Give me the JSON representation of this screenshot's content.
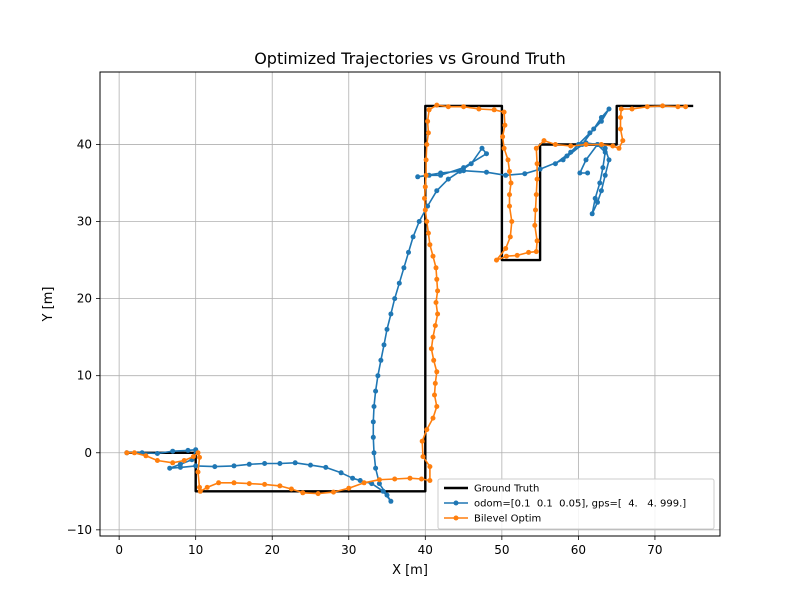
{
  "chart_data": {
    "type": "line",
    "title": "Optimized Trajectories vs Ground Truth",
    "xlabel": "X [m]",
    "ylabel": "Y [m]",
    "xlim": [
      -2.5,
      78.5
    ],
    "ylim": [
      -10.8,
      49.4
    ],
    "xticks": [
      0,
      10,
      20,
      30,
      40,
      50,
      60,
      70
    ],
    "yticks": [
      -10,
      0,
      10,
      20,
      30,
      40
    ],
    "xtick_labels": [
      "0",
      "10",
      "20",
      "30",
      "40",
      "50",
      "60",
      "70"
    ],
    "ytick_labels": [
      "−10",
      "0",
      "10",
      "20",
      "30",
      "40"
    ],
    "grid": true,
    "legend_position": "lower-right",
    "series": [
      {
        "name": "Ground Truth",
        "color": "#000000",
        "markers": false,
        "points": [
          [
            1,
            0
          ],
          [
            10,
            0
          ],
          [
            10,
            -5
          ],
          [
            40,
            -5
          ],
          [
            40,
            45
          ],
          [
            50,
            45
          ],
          [
            50,
            25
          ],
          [
            55,
            25
          ],
          [
            55,
            40
          ],
          [
            65,
            40
          ],
          [
            65,
            45
          ],
          [
            75,
            45
          ]
        ]
      },
      {
        "name": "odom=[0.1  0.1  0.05], gps=[  4.   4. 999.]",
        "color": "#1f77b4",
        "markers": true,
        "points": [
          [
            1,
            0
          ],
          [
            3,
            0
          ],
          [
            5,
            -0.1
          ],
          [
            7,
            0.2
          ],
          [
            9,
            0.3
          ],
          [
            10,
            0.4
          ],
          [
            9.5,
            -0.9
          ],
          [
            8,
            -1.5
          ],
          [
            6.6,
            -2.0
          ],
          [
            8,
            -1.9
          ],
          [
            10,
            -1.7
          ],
          [
            12.5,
            -1.8
          ],
          [
            15,
            -1.7
          ],
          [
            17,
            -1.5
          ],
          [
            19,
            -1.4
          ],
          [
            21,
            -1.4
          ],
          [
            23,
            -1.3
          ],
          [
            25,
            -1.6
          ],
          [
            27,
            -1.9
          ],
          [
            29,
            -2.6
          ],
          [
            30.5,
            -3.3
          ],
          [
            31.5,
            -3.6
          ],
          [
            33,
            -4.0
          ],
          [
            34.5,
            -5.0
          ],
          [
            35.5,
            -6.3
          ],
          [
            35,
            -5.5
          ],
          [
            34,
            -4.0
          ],
          [
            33.5,
            -2.0
          ],
          [
            33.3,
            0
          ],
          [
            33.2,
            2
          ],
          [
            33.2,
            4
          ],
          [
            33.3,
            6
          ],
          [
            33.5,
            8
          ],
          [
            33.8,
            10
          ],
          [
            34.2,
            12
          ],
          [
            34.6,
            14
          ],
          [
            35,
            16
          ],
          [
            35.5,
            18
          ],
          [
            36,
            20
          ],
          [
            36.6,
            22
          ],
          [
            37.2,
            24
          ],
          [
            37.8,
            26
          ],
          [
            38.4,
            28
          ],
          [
            39.2,
            30
          ],
          [
            40.3,
            32
          ],
          [
            41.5,
            34
          ],
          [
            43,
            35.5
          ],
          [
            44.5,
            36.5
          ],
          [
            46,
            37.5
          ],
          [
            47.4,
            39.5
          ],
          [
            48,
            38.8
          ],
          [
            45,
            37
          ],
          [
            42,
            36
          ],
          [
            40.5,
            36
          ],
          [
            39,
            35.8
          ],
          [
            42,
            36.3
          ],
          [
            45,
            36.6
          ],
          [
            48,
            36.4
          ],
          [
            50.5,
            36.0
          ],
          [
            53,
            36.2
          ],
          [
            55,
            36.8
          ],
          [
            58,
            38
          ],
          [
            60.5,
            40
          ],
          [
            62,
            42
          ],
          [
            63,
            43.5
          ],
          [
            64,
            44.6
          ],
          [
            63,
            43
          ],
          [
            61.5,
            41.5
          ],
          [
            60,
            40
          ],
          [
            58.5,
            38.5
          ],
          [
            57,
            37.5
          ],
          [
            59,
            39
          ],
          [
            61,
            40.2
          ],
          [
            62.5,
            40
          ],
          [
            63.5,
            39.5
          ],
          [
            64,
            38
          ],
          [
            63.5,
            36
          ],
          [
            63,
            34
          ],
          [
            62.5,
            32.5
          ],
          [
            61.8,
            31
          ],
          [
            62.2,
            33
          ],
          [
            62.8,
            35
          ],
          [
            63.2,
            37
          ],
          [
            63.5,
            39
          ],
          [
            62.5,
            40
          ],
          [
            61,
            38
          ],
          [
            60.2,
            36.3
          ],
          [
            61.2,
            36.3
          ]
        ]
      },
      {
        "name": "Bilevel Optim",
        "color": "#ff7f0e",
        "markers": true,
        "points": [
          [
            1,
            0
          ],
          [
            2,
            0
          ],
          [
            3.5,
            -0.4
          ],
          [
            5,
            -1.0
          ],
          [
            7,
            -1.3
          ],
          [
            8.5,
            -1.0
          ],
          [
            9.7,
            -0.5
          ],
          [
            10.3,
            0
          ],
          [
            10.5,
            -0.6
          ],
          [
            10.3,
            -2.5
          ],
          [
            10.5,
            -4.5
          ],
          [
            10.6,
            -5.0
          ],
          [
            11.5,
            -4.5
          ],
          [
            13,
            -3.9
          ],
          [
            15,
            -3.9
          ],
          [
            17,
            -4.0
          ],
          [
            19,
            -4.1
          ],
          [
            21,
            -4.3
          ],
          [
            22.5,
            -4.7
          ],
          [
            24,
            -5.2
          ],
          [
            26,
            -5.3
          ],
          [
            28,
            -5.1
          ],
          [
            30,
            -4.6
          ],
          [
            32,
            -3.9
          ],
          [
            34,
            -3.5
          ],
          [
            36,
            -3.4
          ],
          [
            38,
            -3.3
          ],
          [
            39.5,
            -3.4
          ],
          [
            40.6,
            -3.6
          ],
          [
            40.6,
            -1.8
          ],
          [
            39.7,
            -0.5
          ],
          [
            39.6,
            1.5
          ],
          [
            40.2,
            3
          ],
          [
            41,
            4.5
          ],
          [
            41.5,
            6
          ],
          [
            41.2,
            7.5
          ],
          [
            41.3,
            9
          ],
          [
            41.5,
            10.5
          ],
          [
            41.1,
            12
          ],
          [
            40.8,
            13.5
          ],
          [
            41,
            15
          ],
          [
            41.3,
            16.5
          ],
          [
            41.6,
            18
          ],
          [
            41.4,
            19.5
          ],
          [
            41.6,
            21
          ],
          [
            41.5,
            22.5
          ],
          [
            41.4,
            24
          ],
          [
            41.0,
            25.5
          ],
          [
            40.6,
            27
          ],
          [
            40.4,
            28.5
          ],
          [
            40.2,
            30
          ],
          [
            40.0,
            31.5
          ],
          [
            39.9,
            33
          ],
          [
            40.0,
            34.5
          ],
          [
            40.1,
            36
          ],
          [
            40.1,
            38
          ],
          [
            40.2,
            40
          ],
          [
            40.4,
            41.5
          ],
          [
            40.3,
            43
          ],
          [
            40.5,
            44.5
          ],
          [
            41.5,
            45.1
          ],
          [
            43,
            44.9
          ],
          [
            45,
            44.9
          ],
          [
            47,
            44.6
          ],
          [
            49,
            44.5
          ],
          [
            50.3,
            44.2
          ],
          [
            50.4,
            42.5
          ],
          [
            50.1,
            41
          ],
          [
            50.3,
            39.5
          ],
          [
            50.8,
            38
          ],
          [
            51,
            36.5
          ],
          [
            51.2,
            35
          ],
          [
            51,
            33.5
          ],
          [
            51,
            32
          ],
          [
            51.3,
            30
          ],
          [
            51.1,
            28
          ],
          [
            50.5,
            26.5
          ],
          [
            49.3,
            25
          ],
          [
            50.6,
            25.5
          ],
          [
            52,
            25.6
          ],
          [
            53.5,
            26
          ],
          [
            54.5,
            26.1
          ],
          [
            54.6,
            27.5
          ],
          [
            54.3,
            29.5
          ],
          [
            54.4,
            31.5
          ],
          [
            54.5,
            33.5
          ],
          [
            54.6,
            35.5
          ],
          [
            54.6,
            37.5
          ],
          [
            54.5,
            39.5
          ],
          [
            55.5,
            40.5
          ],
          [
            57,
            40
          ],
          [
            59,
            39.8
          ],
          [
            61,
            40
          ],
          [
            63,
            40
          ],
          [
            64.5,
            39.8
          ],
          [
            65.3,
            39.5
          ],
          [
            65.8,
            40.5
          ],
          [
            65.5,
            42
          ],
          [
            65.5,
            43.5
          ],
          [
            65.6,
            44.6
          ],
          [
            67,
            44.6
          ],
          [
            69,
            44.9
          ],
          [
            71,
            45
          ],
          [
            73,
            44.9
          ],
          [
            74,
            44.9
          ]
        ]
      }
    ]
  }
}
